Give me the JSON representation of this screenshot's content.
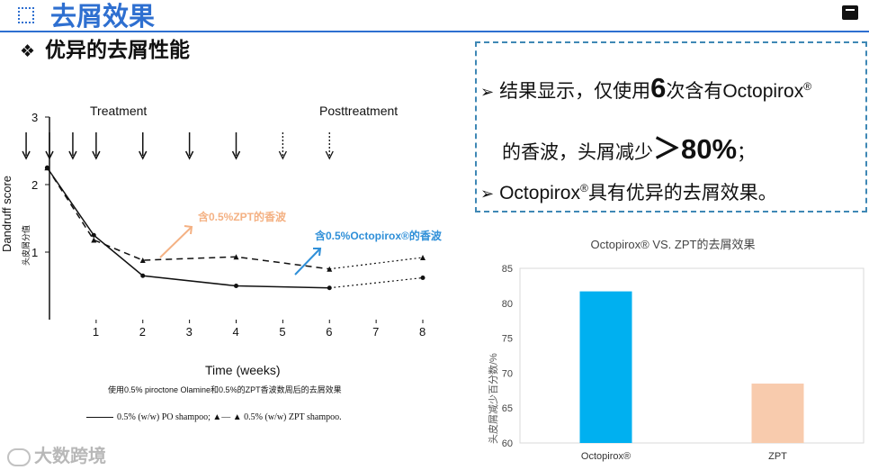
{
  "header": {
    "title": "去屑效果",
    "subtitle_bullet": "❖",
    "subtitle": "优异的去屑性能"
  },
  "result_box": {
    "line1_prefix": "结果显示，仅使用",
    "line1_number": "6",
    "line1_suffix": "次含有Octopirox",
    "line2_prefix": "的香波，头屑减少",
    "line2_value": "＞80%",
    "line2_suffix": "；",
    "line3": "Octopirox",
    "line3_suffix": "具有优异的去屑效果。",
    "registered": "®",
    "bullet": "➢"
  },
  "clinical_chart": {
    "phase_treatment": "Treatment",
    "phase_post": "Posttreatment",
    "ylabel": "Dandruff score",
    "ylabel_cn": "头皮屑分值",
    "xlabel": "Time (weeks)",
    "annotation_zpt": "含0.5%ZPT的香波",
    "annotation_octo": "含0.5%Octopirox®的香波",
    "caption": "使用0.5% piroctone Olamine和0.5%的ZPT香波数周后的去屑效果",
    "legend_text": "0.5% (w/w) PO   shampoo;  ▲–– ▲ 0.5% (w/w) ZPT shampoo.",
    "accent_orange": "#f4b183",
    "accent_blue": "#2f8fd8"
  },
  "chart_data": [
    {
      "type": "line",
      "title": "",
      "xlabel": "Time (weeks)",
      "ylabel": "Dandruff score",
      "x_ticks": [
        "1",
        "2",
        "3",
        "4",
        "5",
        "6",
        "7",
        "8"
      ],
      "y_ticks": [
        "1",
        "2",
        "3"
      ],
      "ylim": [
        0,
        3
      ],
      "xlim": [
        0,
        8
      ],
      "grid": false,
      "series": [
        {
          "name": "0.5% (w/w) PO shampoo",
          "style": "solid-then-dotted",
          "x": [
            -0.05,
            0.95,
            2,
            4,
            6,
            8
          ],
          "y": [
            2.25,
            1.25,
            0.65,
            0.5,
            0.47,
            0.62
          ]
        },
        {
          "name": "0.5% (w/w) ZPT shampoo",
          "style": "dashed-then-dotted",
          "x": [
            -0.05,
            0.95,
            2,
            4,
            6,
            8
          ],
          "y": [
            2.25,
            1.18,
            0.88,
            0.93,
            0.75,
            0.92
          ]
        }
      ],
      "treatment_weeks": [
        -0.5,
        0,
        0.5,
        1,
        2,
        3,
        4
      ],
      "posttreatment_weeks": [
        5,
        6
      ]
    },
    {
      "type": "bar",
      "title": "Octopirox®  VS. ZPT的去屑效果",
      "xlabel": "",
      "ylabel": "头皮屑减少百分数/%",
      "categories": [
        "Octopirox®",
        "ZPT"
      ],
      "values": [
        81.7,
        68.5
      ],
      "colors": [
        "#00b0f0",
        "#f8cbad"
      ],
      "ylim": [
        60,
        85
      ],
      "y_ticks": [
        "60",
        "65",
        "70",
        "75",
        "80",
        "85"
      ],
      "grid": false
    }
  ],
  "watermark": {
    "text": "大数跨境"
  }
}
